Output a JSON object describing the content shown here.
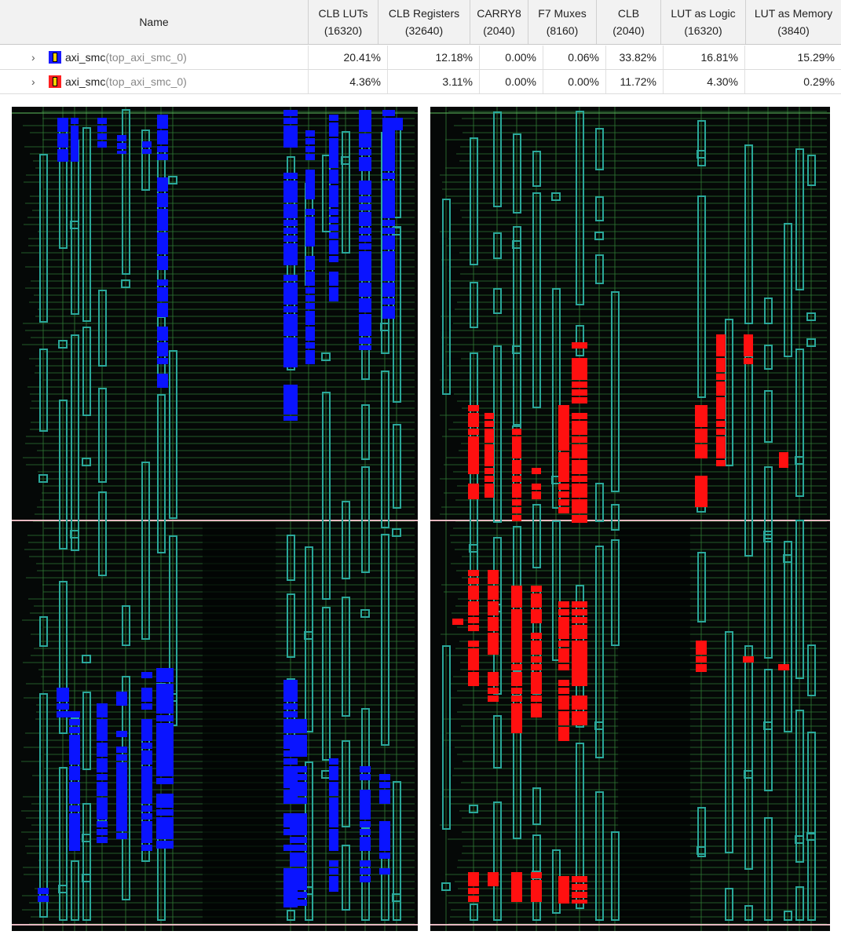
{
  "table": {
    "header": {
      "name": "Name",
      "columns": [
        {
          "title": "CLB LUTs",
          "sub": "(16320)"
        },
        {
          "title": "CLB Registers",
          "sub": "(32640)"
        },
        {
          "title": "CARRY8",
          "sub": "(2040)"
        },
        {
          "title": "F7 Muxes",
          "sub": "(8160)"
        },
        {
          "title": "CLB",
          "sub": "(2040)"
        },
        {
          "title": "LUT as Logic",
          "sub": "(16320)"
        },
        {
          "title": "LUT as Memory",
          "sub": "(3840)"
        }
      ]
    },
    "rows": [
      {
        "color": "#1a1aff",
        "name": "axi_smc",
        "instance": "(top_axi_smc_0)",
        "values": [
          "20.41%",
          "12.18%",
          "0.00%",
          "0.06%",
          "33.82%",
          "16.81%",
          "15.29%"
        ]
      },
      {
        "color": "#ff2020",
        "name": "axi_smc",
        "instance": "(top_axi_smc_0)",
        "values": [
          "4.36%",
          "3.11%",
          "0.00%",
          "0.00%",
          "11.72%",
          "4.30%",
          "0.29%"
        ]
      }
    ]
  },
  "device_views": {
    "left_highlight": "#0a14ff",
    "right_highlight": "#ff1010",
    "grid_line": "#2f7a35",
    "site_outline": "#2aa79a",
    "clock_region_line": "#e6b8c0"
  }
}
